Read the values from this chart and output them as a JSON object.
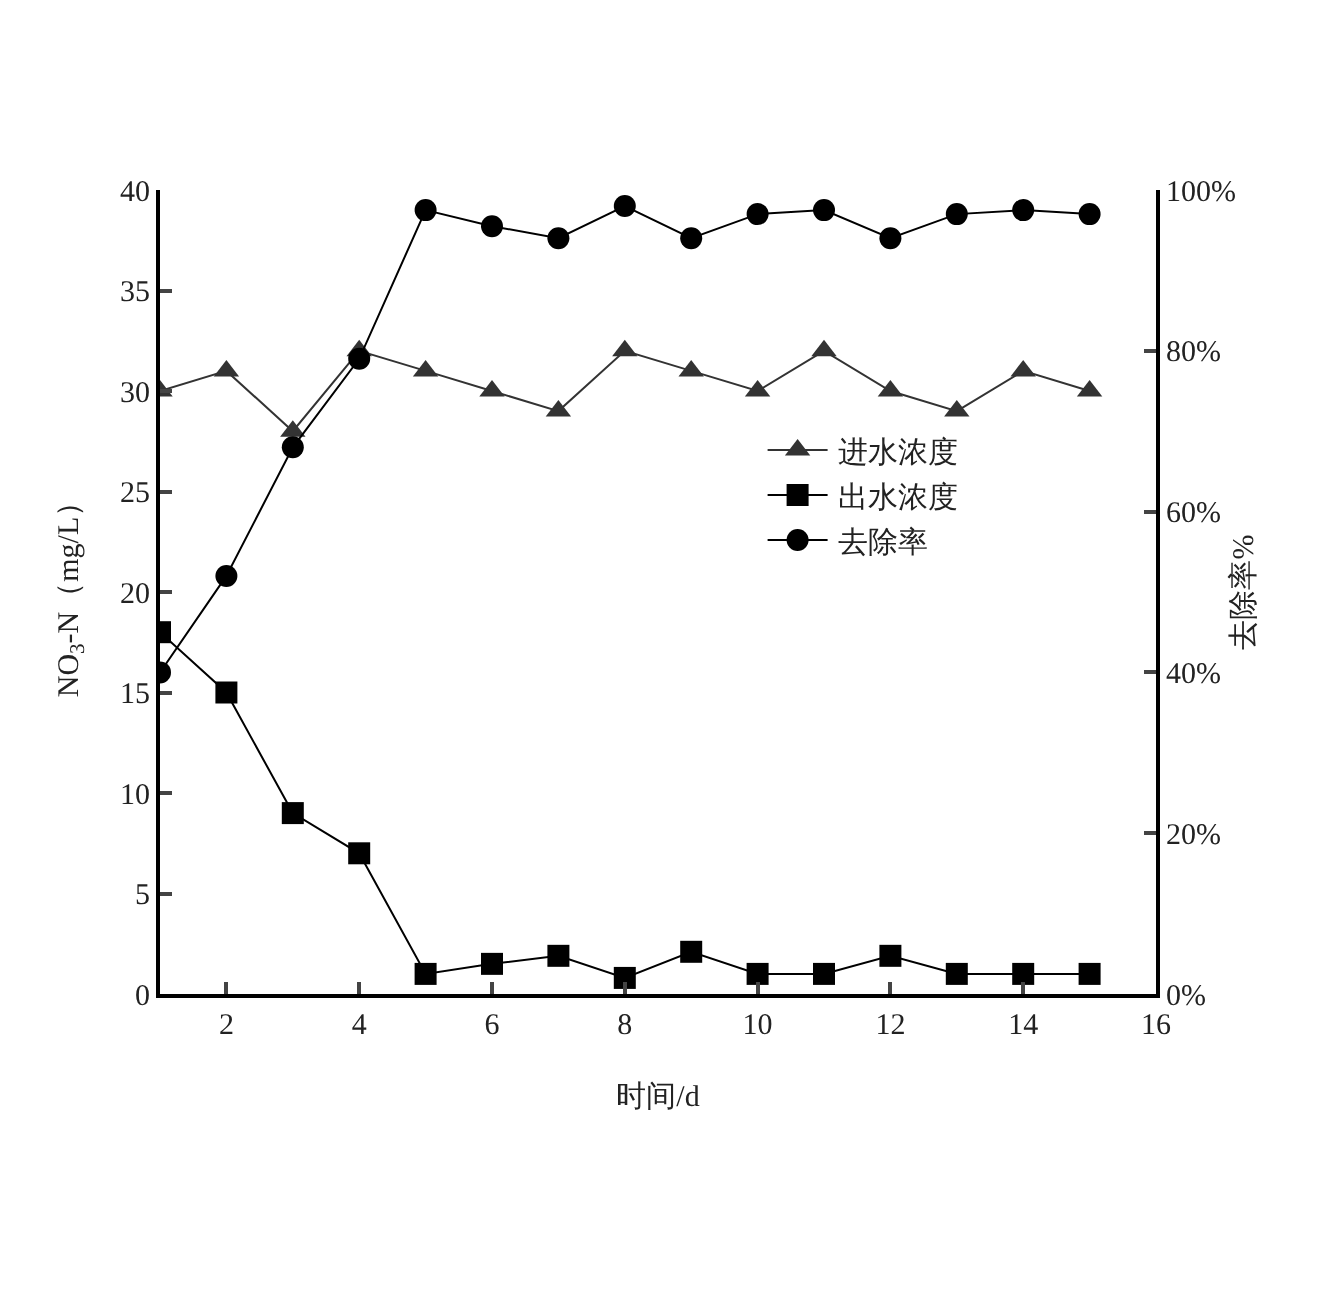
{
  "chart_data": {
    "type": "line",
    "xlabel": "时间/d",
    "ylabel": "NO$_{3}$-N（mg/L）",
    "y2label": "去除率%",
    "x": [
      1,
      2,
      3,
      4,
      5,
      6,
      7,
      8,
      9,
      10,
      11,
      12,
      13,
      14,
      15
    ],
    "series": [
      {
        "name": "进水浓度",
        "color": "#333333",
        "marker": "triangle",
        "values": [
          30,
          31,
          28,
          32,
          31,
          30,
          29,
          32,
          31,
          30,
          32,
          30,
          29,
          31,
          30
        ]
      },
      {
        "name": "出水浓度",
        "color": "#000000",
        "marker": "square",
        "values": [
          18,
          15,
          9,
          7,
          1,
          1.5,
          1.9,
          0.8,
          2.1,
          1,
          1,
          1.9,
          1,
          1,
          1
        ]
      },
      {
        "name": "去除率",
        "color": "#000000",
        "marker": "circle",
        "axis": "y2",
        "values": [
          40,
          52,
          68,
          79,
          97.5,
          95.5,
          94,
          98,
          94,
          97,
          97.5,
          94,
          97,
          97.5,
          97
        ]
      }
    ],
    "xlim": [
      1,
      16
    ],
    "xticks": [
      2,
      4,
      6,
      8,
      10,
      12,
      14,
      16
    ],
    "ylim": [
      0,
      40
    ],
    "yticks": [
      0,
      5,
      10,
      15,
      20,
      25,
      30,
      35,
      40
    ],
    "y2lim": [
      0,
      100
    ],
    "y2ticks": [
      {
        "value": 0,
        "label": "0%"
      },
      {
        "value": 20,
        "label": "20%"
      },
      {
        "value": 40,
        "label": "40%"
      },
      {
        "value": 60,
        "label": "60%"
      },
      {
        "value": 80,
        "label": "80%"
      },
      {
        "value": 100,
        "label": "100%"
      }
    ],
    "grid": false,
    "legend": "right",
    "line_style": "solid"
  }
}
